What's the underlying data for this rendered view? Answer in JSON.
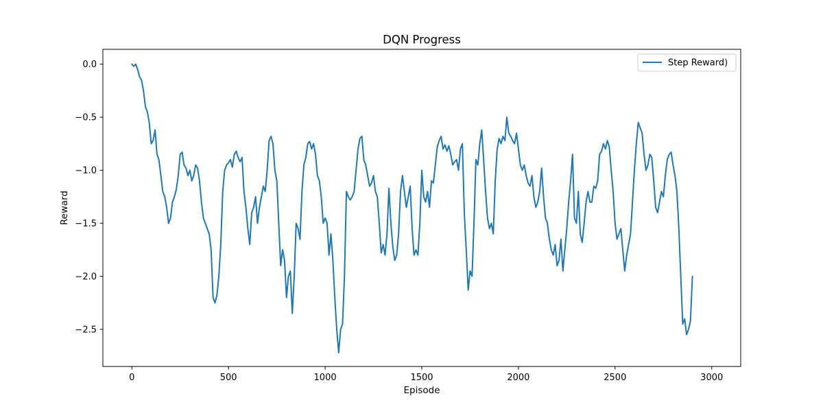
{
  "chart_data": {
    "type": "line",
    "title": "DQN Progress",
    "xlabel": "Episode",
    "ylabel": "Reward",
    "xlim": [
      -150,
      3150
    ],
    "ylim": [
      -2.85,
      0.14
    ],
    "xticks": [
      0,
      500,
      1000,
      1500,
      2000,
      2500,
      3000
    ],
    "yticks": [
      0.0,
      -0.5,
      -1.0,
      -1.5,
      -2.0,
      -2.5
    ],
    "ytick_labels": [
      "0.0",
      "−0.5",
      "−1.0",
      "−1.5",
      "−2.0",
      "−2.5"
    ],
    "grid": false,
    "legend_position": "top-right",
    "series": [
      {
        "name": "Step Reward)",
        "color": "#1f77b4",
        "points": [
          [
            0,
            0.0
          ],
          [
            10,
            -0.02
          ],
          [
            20,
            0.0
          ],
          [
            30,
            -0.05
          ],
          [
            40,
            -0.12
          ],
          [
            50,
            -0.15
          ],
          [
            60,
            -0.25
          ],
          [
            70,
            -0.4
          ],
          [
            80,
            -0.45
          ],
          [
            90,
            -0.55
          ],
          [
            100,
            -0.75
          ],
          [
            110,
            -0.72
          ],
          [
            120,
            -0.62
          ],
          [
            130,
            -0.85
          ],
          [
            140,
            -0.9
          ],
          [
            150,
            -1.05
          ],
          [
            160,
            -1.2
          ],
          [
            170,
            -1.25
          ],
          [
            180,
            -1.35
          ],
          [
            190,
            -1.5
          ],
          [
            200,
            -1.45
          ],
          [
            210,
            -1.3
          ],
          [
            220,
            -1.25
          ],
          [
            230,
            -1.18
          ],
          [
            240,
            -1.05
          ],
          [
            250,
            -0.85
          ],
          [
            260,
            -0.83
          ],
          [
            270,
            -0.95
          ],
          [
            280,
            -0.98
          ],
          [
            290,
            -1.05
          ],
          [
            300,
            -1.0
          ],
          [
            310,
            -1.1
          ],
          [
            320,
            -1.05
          ],
          [
            330,
            -0.95
          ],
          [
            340,
            -0.98
          ],
          [
            350,
            -1.1
          ],
          [
            360,
            -1.3
          ],
          [
            370,
            -1.45
          ],
          [
            380,
            -1.5
          ],
          [
            390,
            -1.55
          ],
          [
            400,
            -1.6
          ],
          [
            410,
            -1.75
          ],
          [
            420,
            -2.2
          ],
          [
            430,
            -2.25
          ],
          [
            440,
            -2.18
          ],
          [
            450,
            -2.0
          ],
          [
            460,
            -1.7
          ],
          [
            470,
            -1.2
          ],
          [
            480,
            -1.0
          ],
          [
            490,
            -0.95
          ],
          [
            500,
            -0.93
          ],
          [
            510,
            -0.9
          ],
          [
            520,
            -0.97
          ],
          [
            530,
            -0.85
          ],
          [
            540,
            -0.82
          ],
          [
            550,
            -0.88
          ],
          [
            560,
            -0.92
          ],
          [
            570,
            -0.88
          ],
          [
            580,
            -1.2
          ],
          [
            590,
            -1.35
          ],
          [
            600,
            -1.55
          ],
          [
            610,
            -1.7
          ],
          [
            620,
            -1.4
          ],
          [
            630,
            -1.35
          ],
          [
            640,
            -1.25
          ],
          [
            650,
            -1.5
          ],
          [
            660,
            -1.35
          ],
          [
            670,
            -1.25
          ],
          [
            680,
            -1.15
          ],
          [
            690,
            -1.2
          ],
          [
            700,
            -1.0
          ],
          [
            710,
            -0.72
          ],
          [
            720,
            -0.68
          ],
          [
            730,
            -0.75
          ],
          [
            740,
            -1.0
          ],
          [
            750,
            -1.1
          ],
          [
            760,
            -1.5
          ],
          [
            770,
            -1.9
          ],
          [
            780,
            -1.75
          ],
          [
            790,
            -1.85
          ],
          [
            800,
            -2.2
          ],
          [
            810,
            -2.0
          ],
          [
            820,
            -1.95
          ],
          [
            830,
            -2.35
          ],
          [
            840,
            -2.0
          ],
          [
            850,
            -1.5
          ],
          [
            860,
            -1.55
          ],
          [
            870,
            -1.65
          ],
          [
            880,
            -1.2
          ],
          [
            890,
            -0.95
          ],
          [
            900,
            -0.88
          ],
          [
            910,
            -0.75
          ],
          [
            920,
            -0.73
          ],
          [
            930,
            -0.8
          ],
          [
            940,
            -0.75
          ],
          [
            950,
            -0.85
          ],
          [
            960,
            -1.05
          ],
          [
            970,
            -1.1
          ],
          [
            980,
            -1.25
          ],
          [
            990,
            -1.5
          ],
          [
            1000,
            -1.45
          ],
          [
            1010,
            -1.5
          ],
          [
            1020,
            -1.8
          ],
          [
            1030,
            -1.6
          ],
          [
            1040,
            -1.85
          ],
          [
            1050,
            -2.2
          ],
          [
            1060,
            -2.5
          ],
          [
            1070,
            -2.72
          ],
          [
            1080,
            -2.5
          ],
          [
            1090,
            -2.45
          ],
          [
            1100,
            -2.0
          ],
          [
            1110,
            -1.2
          ],
          [
            1120,
            -1.25
          ],
          [
            1130,
            -1.28
          ],
          [
            1140,
            -1.25
          ],
          [
            1150,
            -1.2
          ],
          [
            1160,
            -1.0
          ],
          [
            1170,
            -0.8
          ],
          [
            1180,
            -0.7
          ],
          [
            1190,
            -0.68
          ],
          [
            1200,
            -0.9
          ],
          [
            1210,
            -0.95
          ],
          [
            1220,
            -1.05
          ],
          [
            1230,
            -1.15
          ],
          [
            1240,
            -1.12
          ],
          [
            1250,
            -1.05
          ],
          [
            1260,
            -1.2
          ],
          [
            1270,
            -1.25
          ],
          [
            1280,
            -1.5
          ],
          [
            1290,
            -1.78
          ],
          [
            1300,
            -1.7
          ],
          [
            1310,
            -1.8
          ],
          [
            1320,
            -1.6
          ],
          [
            1330,
            -1.17
          ],
          [
            1340,
            -1.5
          ],
          [
            1350,
            -1.72
          ],
          [
            1360,
            -1.85
          ],
          [
            1370,
            -1.8
          ],
          [
            1380,
            -1.6
          ],
          [
            1390,
            -1.2
          ],
          [
            1400,
            -1.05
          ],
          [
            1410,
            -1.2
          ],
          [
            1420,
            -1.35
          ],
          [
            1430,
            -1.25
          ],
          [
            1440,
            -1.15
          ],
          [
            1450,
            -1.55
          ],
          [
            1460,
            -1.8
          ],
          [
            1470,
            -1.75
          ],
          [
            1480,
            -1.8
          ],
          [
            1490,
            -1.5
          ],
          [
            1500,
            -1.0
          ],
          [
            1510,
            -1.25
          ],
          [
            1520,
            -1.3
          ],
          [
            1530,
            -1.2
          ],
          [
            1540,
            -1.35
          ],
          [
            1550,
            -1.1
          ],
          [
            1560,
            -1.12
          ],
          [
            1570,
            -0.95
          ],
          [
            1580,
            -0.78
          ],
          [
            1590,
            -0.72
          ],
          [
            1600,
            -0.68
          ],
          [
            1610,
            -0.8
          ],
          [
            1620,
            -0.76
          ],
          [
            1630,
            -0.82
          ],
          [
            1640,
            -0.77
          ],
          [
            1650,
            -0.85
          ],
          [
            1660,
            -0.95
          ],
          [
            1670,
            -0.92
          ],
          [
            1680,
            -0.9
          ],
          [
            1690,
            -1.0
          ],
          [
            1700,
            -0.8
          ],
          [
            1710,
            -0.75
          ],
          [
            1720,
            -1.4
          ],
          [
            1730,
            -1.75
          ],
          [
            1740,
            -2.13
          ],
          [
            1750,
            -1.95
          ],
          [
            1760,
            -2.0
          ],
          [
            1770,
            -1.5
          ],
          [
            1780,
            -0.9
          ],
          [
            1790,
            -0.95
          ],
          [
            1800,
            -0.75
          ],
          [
            1810,
            -0.62
          ],
          [
            1820,
            -0.9
          ],
          [
            1830,
            -1.2
          ],
          [
            1840,
            -1.45
          ],
          [
            1850,
            -1.55
          ],
          [
            1860,
            -1.5
          ],
          [
            1870,
            -1.6
          ],
          [
            1880,
            -1.1
          ],
          [
            1890,
            -0.8
          ],
          [
            1900,
            -0.7
          ],
          [
            1910,
            -0.75
          ],
          [
            1920,
            -0.68
          ],
          [
            1930,
            -0.72
          ],
          [
            1940,
            -0.5
          ],
          [
            1950,
            -0.65
          ],
          [
            1960,
            -0.68
          ],
          [
            1970,
            -0.72
          ],
          [
            1980,
            -0.75
          ],
          [
            1990,
            -0.65
          ],
          [
            2000,
            -0.8
          ],
          [
            2010,
            -0.95
          ],
          [
            2020,
            -1.0
          ],
          [
            2030,
            -0.95
          ],
          [
            2040,
            -1.05
          ],
          [
            2050,
            -1.12
          ],
          [
            2060,
            -1.15
          ],
          [
            2070,
            -1.05
          ],
          [
            2080,
            -1.25
          ],
          [
            2090,
            -1.35
          ],
          [
            2100,
            -1.3
          ],
          [
            2110,
            -1.2
          ],
          [
            2120,
            -0.98
          ],
          [
            2130,
            -1.25
          ],
          [
            2140,
            -1.45
          ],
          [
            2150,
            -1.5
          ],
          [
            2160,
            -1.65
          ],
          [
            2170,
            -1.75
          ],
          [
            2180,
            -1.8
          ],
          [
            2190,
            -1.7
          ],
          [
            2200,
            -1.9
          ],
          [
            2210,
            -1.85
          ],
          [
            2220,
            -1.65
          ],
          [
            2230,
            -1.95
          ],
          [
            2240,
            -1.75
          ],
          [
            2250,
            -1.55
          ],
          [
            2260,
            -1.3
          ],
          [
            2270,
            -1.1
          ],
          [
            2280,
            -0.85
          ],
          [
            2290,
            -1.45
          ],
          [
            2300,
            -1.5
          ],
          [
            2310,
            -1.2
          ],
          [
            2320,
            -1.6
          ],
          [
            2330,
            -1.68
          ],
          [
            2340,
            -1.5
          ],
          [
            2350,
            -1.3
          ],
          [
            2360,
            -1.2
          ],
          [
            2370,
            -1.3
          ],
          [
            2380,
            -1.3
          ],
          [
            2390,
            -1.15
          ],
          [
            2400,
            -1.17
          ],
          [
            2410,
            -1.1
          ],
          [
            2420,
            -0.85
          ],
          [
            2430,
            -0.82
          ],
          [
            2440,
            -0.75
          ],
          [
            2450,
            -0.8
          ],
          [
            2460,
            -0.72
          ],
          [
            2470,
            -0.78
          ],
          [
            2480,
            -1.0
          ],
          [
            2490,
            -1.2
          ],
          [
            2500,
            -1.5
          ],
          [
            2510,
            -1.65
          ],
          [
            2520,
            -1.6
          ],
          [
            2530,
            -1.55
          ],
          [
            2540,
            -1.75
          ],
          [
            2550,
            -1.95
          ],
          [
            2560,
            -1.8
          ],
          [
            2570,
            -1.7
          ],
          [
            2580,
            -1.6
          ],
          [
            2590,
            -1.3
          ],
          [
            2600,
            -1.0
          ],
          [
            2610,
            -0.75
          ],
          [
            2620,
            -0.55
          ],
          [
            2630,
            -0.6
          ],
          [
            2640,
            -0.65
          ],
          [
            2650,
            -0.85
          ],
          [
            2660,
            -1.0
          ],
          [
            2670,
            -0.95
          ],
          [
            2680,
            -0.85
          ],
          [
            2690,
            -0.88
          ],
          [
            2700,
            -1.1
          ],
          [
            2710,
            -1.35
          ],
          [
            2720,
            -1.4
          ],
          [
            2730,
            -1.3
          ],
          [
            2740,
            -1.2
          ],
          [
            2750,
            -1.25
          ],
          [
            2760,
            -1.05
          ],
          [
            2770,
            -0.9
          ],
          [
            2780,
            -0.85
          ],
          [
            2790,
            -0.83
          ],
          [
            2800,
            -0.95
          ],
          [
            2810,
            -1.05
          ],
          [
            2820,
            -1.2
          ],
          [
            2830,
            -1.55
          ],
          [
            2840,
            -2.0
          ],
          [
            2850,
            -2.45
          ],
          [
            2860,
            -2.4
          ],
          [
            2870,
            -2.55
          ],
          [
            2880,
            -2.5
          ],
          [
            2890,
            -2.42
          ],
          [
            2900,
            -2.0
          ]
        ]
      }
    ]
  }
}
